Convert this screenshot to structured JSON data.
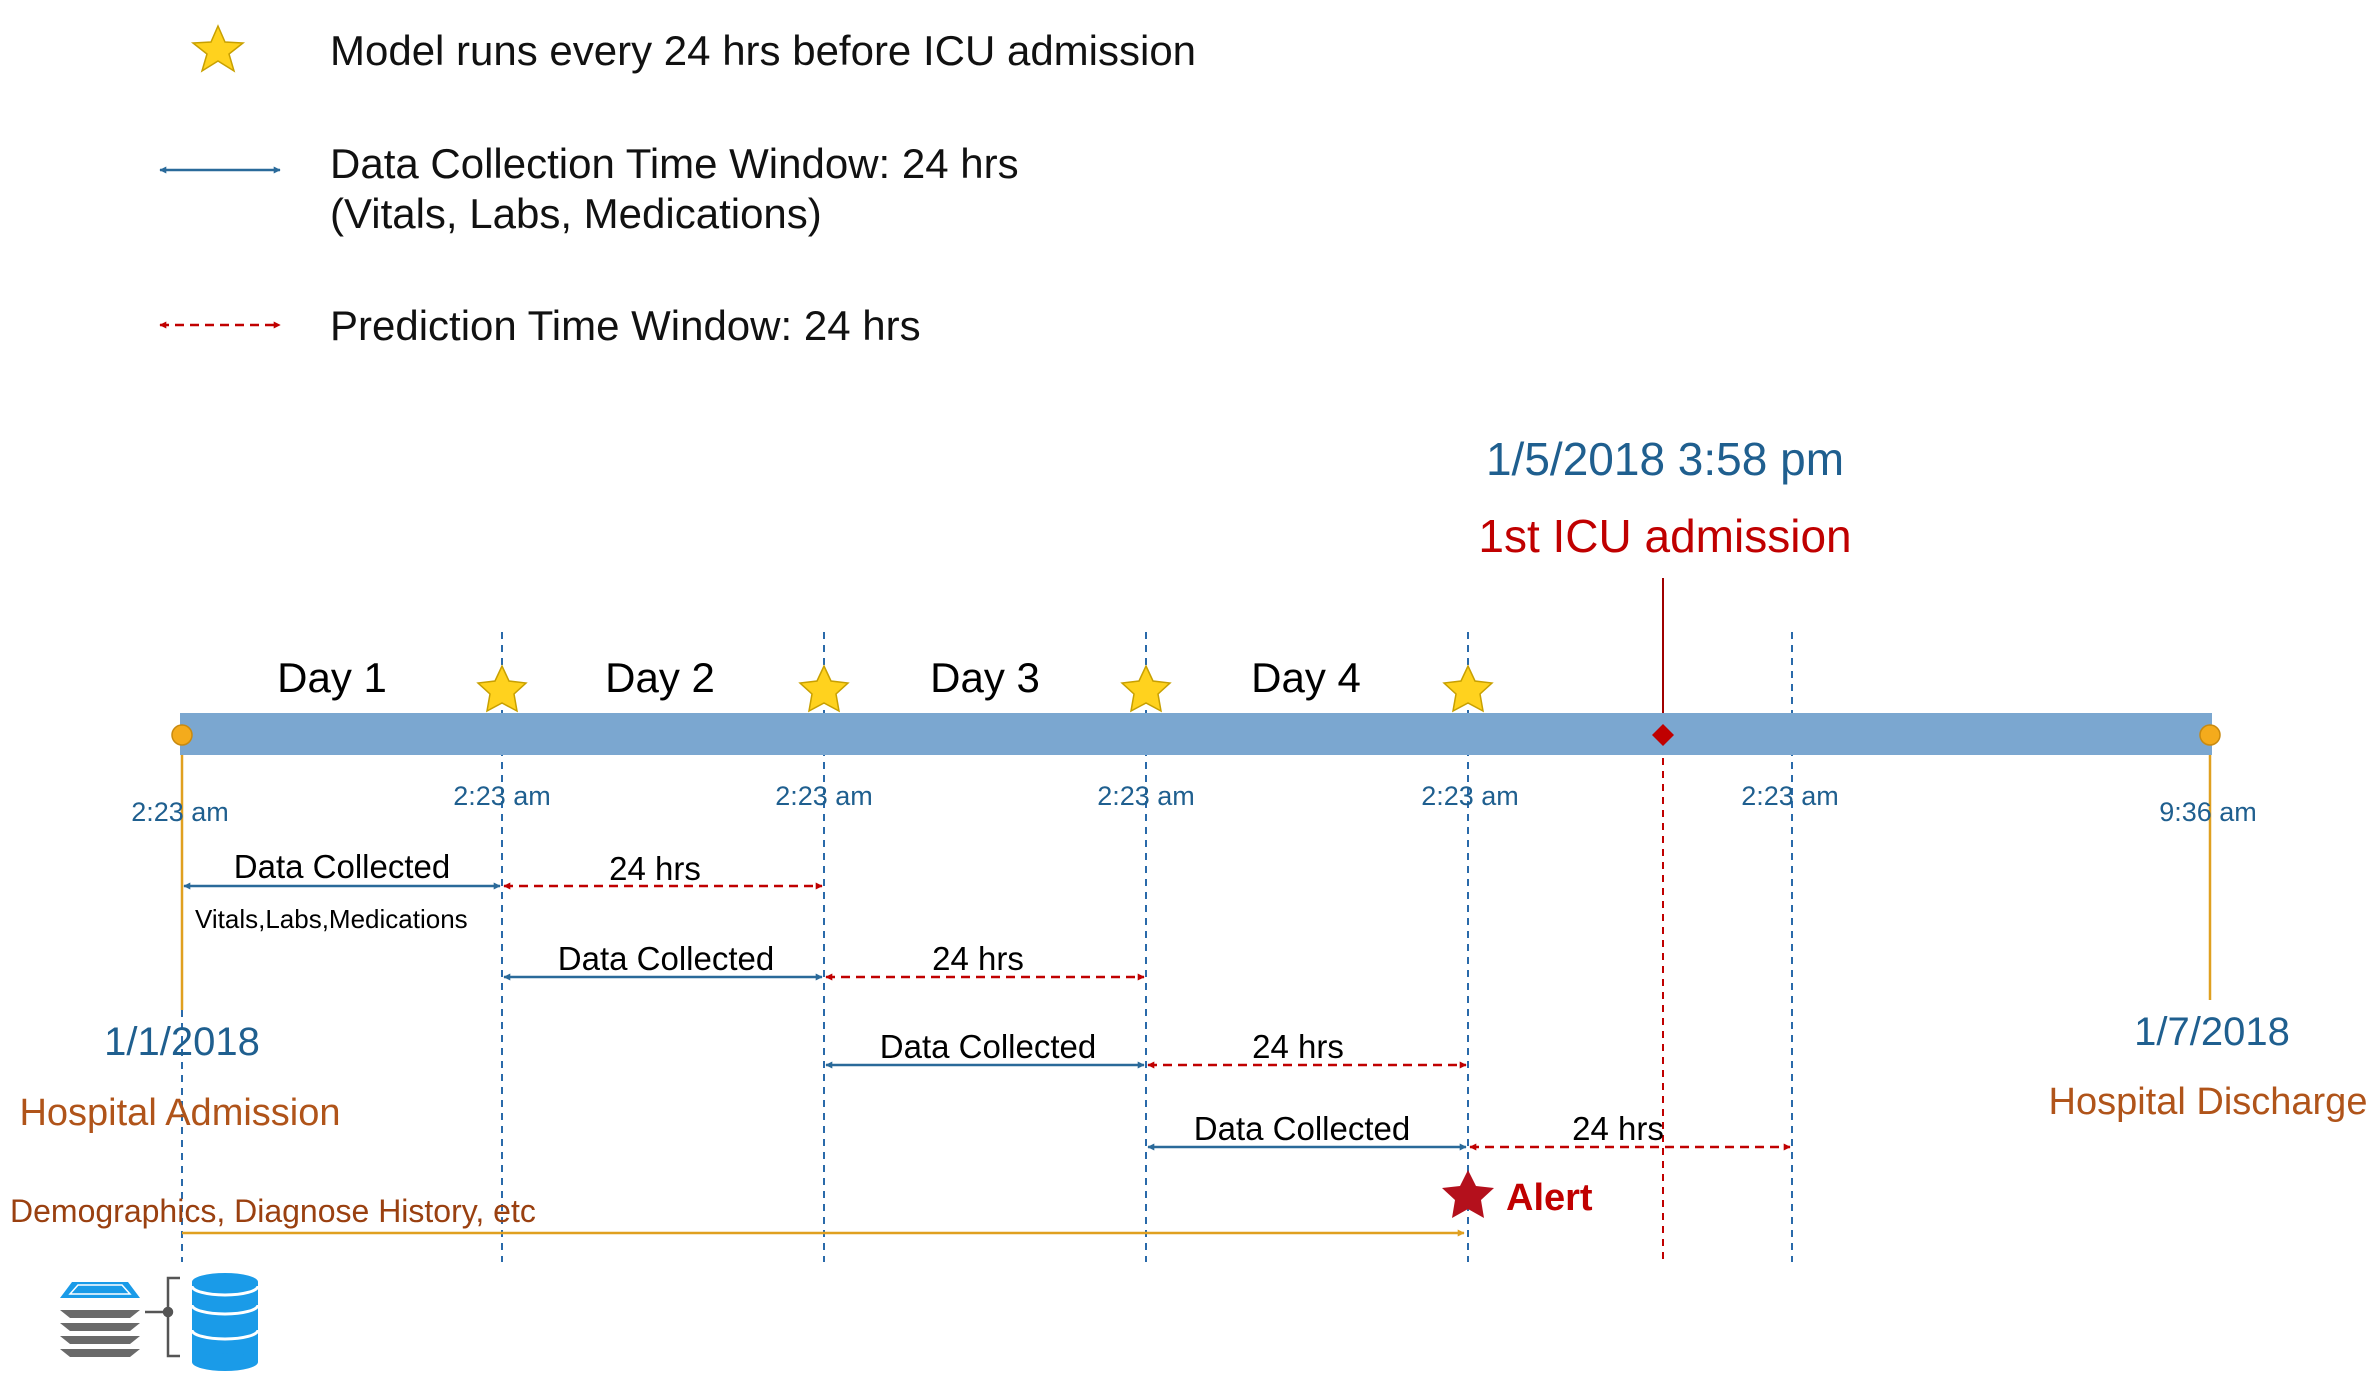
{
  "colors": {
    "timeline_bar": "#7ba7d0",
    "data_blue": "#2a6a9a",
    "pred_red": "#c00000",
    "vline_blue": "#2a6aaa",
    "orange": "#e0a020",
    "brown_text": "#b0541a",
    "star_fill": "#ffd21e",
    "alert_red": "#b4101c",
    "db_blue": "#1a9be8",
    "stack_gray": "#6a6a6a"
  },
  "legend": {
    "model_runs": "Model runs every 24 hrs before ICU admission",
    "data_window_line1": "Data Collection Time Window: 24 hrs",
    "data_window_line2": "(Vitals, Labs, Medications)",
    "prediction_window": "Prediction Time Window: 24 hrs"
  },
  "icu": {
    "datetime": "1/5/2018 3:58 pm",
    "label": "1st ICU admission"
  },
  "days": [
    "Day 1",
    "Day 2",
    "Day 3",
    "Day 4"
  ],
  "times": [
    "2:23 am",
    "2:23 am",
    "2:23 am",
    "2:23 am",
    "2:23 am",
    "2:23 am",
    "9:36 am"
  ],
  "admission": {
    "date": "1/1/2018",
    "label": "Hospital Admission"
  },
  "discharge": {
    "date": "1/7/2018",
    "label": "Hospital Discharge"
  },
  "windows": [
    {
      "collected": "Data Collected",
      "sub": "Vitals,Labs,Medications",
      "pred": "24 hrs"
    },
    {
      "collected": "Data Collected",
      "pred": "24 hrs"
    },
    {
      "collected": "Data Collected",
      "pred": "24 hrs"
    },
    {
      "collected": "Data Collected",
      "pred": "24 hrs"
    }
  ],
  "alert": "Alert",
  "static_data": "Demographics, Diagnose History, etc",
  "icons": [
    "star-icon",
    "double-arrow-icon",
    "dashed-double-arrow-icon",
    "alert-star-icon",
    "layer-stack-icon",
    "database-icon"
  ]
}
